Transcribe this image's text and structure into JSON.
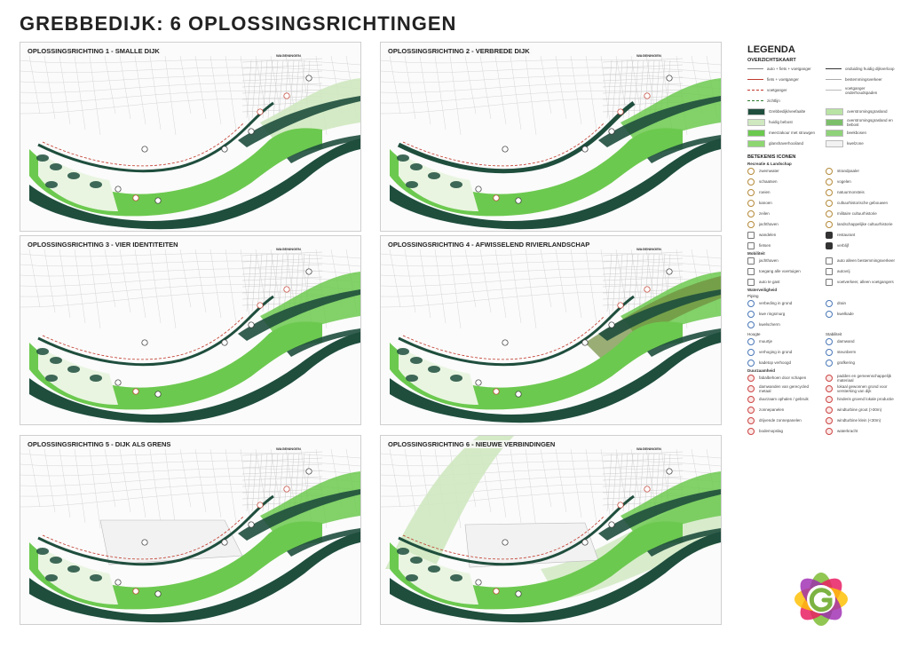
{
  "title": "GREBBEDIJK: 6 OPLOSSINGSRICHTINGEN",
  "panels": [
    {
      "title": "OPLOSSINGSRICHTING 1 - SMALLE DIJK"
    },
    {
      "title": "OPLOSSINGSRICHTING 2 - VERBREDE DIJK"
    },
    {
      "title": "OPLOSSINGSRICHTING 3 - VIER IDENTITEITEN"
    },
    {
      "title": "OPLOSSINGSRICHTING 4 - AFWISSELEND RIVIERLANDSCHAP"
    },
    {
      "title": "OPLOSSINGSRICHTING 5 - DIJK ALS GRENS"
    },
    {
      "title": "OPLOSSINGSRICHTING 6 - NIEUWE VERBINDINGEN"
    }
  ],
  "map_labels": {
    "town": "WAGENINGEN"
  },
  "legend": {
    "title": "LEGENDA",
    "overzichtskaart_heading": "OVERZICHTSKAART",
    "overzicht_items": [
      {
        "label": "auto + fiets + voetganger",
        "color": "#888888",
        "kind": "line"
      },
      {
        "label": "onduiding huidig dijkverloop",
        "color": "#333333",
        "kind": "line"
      },
      {
        "label": "fiets + voetganger",
        "color": "#c0392b",
        "kind": "line"
      },
      {
        "label": "bestemmingsverkeer",
        "color": "#aaaaaa",
        "kind": "line"
      },
      {
        "label": "voetganger",
        "color": "#c0392b",
        "kind": "dash"
      },
      {
        "label": "voetganger onderhoudspaden",
        "color": "#bbbbbb",
        "kind": "line"
      },
      {
        "label": "zichtlijn",
        "color": "#2e7d32",
        "kind": "dash"
      },
      {
        "label": "",
        "color": "",
        "kind": "none"
      },
      {
        "label": "Grebbedijk/veefaalte",
        "color": "#1f4e3d",
        "kind": "fill"
      },
      {
        "label": "overstromingsgrasland",
        "color": "#b9e3a4",
        "kind": "fill"
      },
      {
        "label": "huidig bebost",
        "color": "#cfe8c0",
        "kind": "fill"
      },
      {
        "label": "overstromingsgrasland en bebost",
        "color": "#7cbf6a",
        "kind": "fill"
      },
      {
        "label": "meerzakour met struwgen",
        "color": "#6cc94f",
        "kind": "fill"
      },
      {
        "label": "beekbosen",
        "color": "#8fd27a",
        "kind": "fill"
      },
      {
        "label": "glanshaverhooiland",
        "color": "#8ed671",
        "kind": "fill"
      },
      {
        "label": "kwelzone",
        "color": "#f2f2f2",
        "kind": "fill"
      }
    ],
    "iconen_heading": "BETEKENIS ICONEN",
    "recreatie_heading": "Recreatie & Landschap",
    "recreatie_items": [
      {
        "label": "zwemwater",
        "style": "gold"
      },
      {
        "label": "strandpaaler",
        "style": "gold"
      },
      {
        "label": "schaatsen",
        "style": "gold"
      },
      {
        "label": "vogelen",
        "style": "gold"
      },
      {
        "label": "roeien",
        "style": "gold"
      },
      {
        "label": "natuurmonsteis",
        "style": "gold"
      },
      {
        "label": "kanoen",
        "style": "gold"
      },
      {
        "label": "cultuurhistorische gebouwen",
        "style": "gold"
      },
      {
        "label": "zeilen",
        "style": "gold"
      },
      {
        "label": "militaire cultuurhistorie",
        "style": "gold"
      },
      {
        "label": "jachthaven",
        "style": "gold"
      },
      {
        "label": "landschappelijke cultuurhistorie",
        "style": "gold"
      },
      {
        "label": "wandelen",
        "style": "sq"
      },
      {
        "label": "restaurant",
        "style": "black"
      },
      {
        "label": "fietsen",
        "style": "sq"
      },
      {
        "label": "verblijf",
        "style": "black"
      }
    ],
    "mobiliteit_heading": "Mobiliteit",
    "mobiliteit_items": [
      {
        "label": "jachthaven",
        "style": "sq"
      },
      {
        "label": "auto alleen bestemmingsverkeer",
        "style": "sq"
      },
      {
        "label": "toegang alle voertuigen",
        "style": "sq"
      },
      {
        "label": "autovrij",
        "style": "sq"
      },
      {
        "label": "auto te gast",
        "style": "sq"
      },
      {
        "label": "voetverkeer, alleen voetgangers",
        "style": "sq"
      }
    ],
    "water_heading": "Waterveiligheid",
    "piping_heading": "Piping",
    "piping_items": [
      {
        "label": "verbeding in grond",
        "style": "blue"
      },
      {
        "label": "drain",
        "style": "blue"
      },
      {
        "label": "kwe ringsmurg",
        "style": "blue"
      },
      {
        "label": "kwelkade",
        "style": "blue"
      },
      {
        "label": "kwelscherm",
        "style": "blue"
      },
      {
        "label": "",
        "style": "none"
      }
    ],
    "hoogte_heading": "Hoogte",
    "stabiliteit_heading": "Stabiliteit",
    "hoogte_items": [
      {
        "label": "muurtje",
        "style": "blue"
      },
      {
        "label": "damwand",
        "style": "blue"
      },
      {
        "label": "verhoging in grond",
        "style": "blue"
      },
      {
        "label": "steunberm",
        "style": "blue"
      },
      {
        "label": "kadetop verhoogd",
        "style": "blue"
      },
      {
        "label": "grafkering",
        "style": "blue"
      }
    ],
    "duurzaam_heading": "Duurzaamheid",
    "duurzaam_items": [
      {
        "label": "fabalbehoen door schapen",
        "style": "red"
      },
      {
        "label": "padden en gemeenschappelijk materiaal",
        "style": "red"
      },
      {
        "label": "damwanden van gerecycled metaal",
        "style": "red"
      },
      {
        "label": "lokaal gewonnen grond voor versterking van dijk",
        "style": "red"
      },
      {
        "label": "duurzaam ophalen / gebruik",
        "style": "red"
      },
      {
        "label": "hinderis groend lokale productie",
        "style": "red"
      },
      {
        "label": "zonnepanelen",
        "style": "red"
      },
      {
        "label": "windturbine groot (>30m)",
        "style": "red"
      },
      {
        "label": "drijvende zonnepanelen",
        "style": "red"
      },
      {
        "label": "windturbine klein (<30m)",
        "style": "red"
      },
      {
        "label": "bodemopslag",
        "style": "red"
      },
      {
        "label": "waterkracht",
        "style": "red"
      }
    ]
  },
  "colors": {
    "dike": "#1f4e3d",
    "floodplain": "#6cc94f",
    "lightgreen": "#cfe8c0",
    "pale": "#e9f5e1",
    "road": "#c0392b"
  }
}
